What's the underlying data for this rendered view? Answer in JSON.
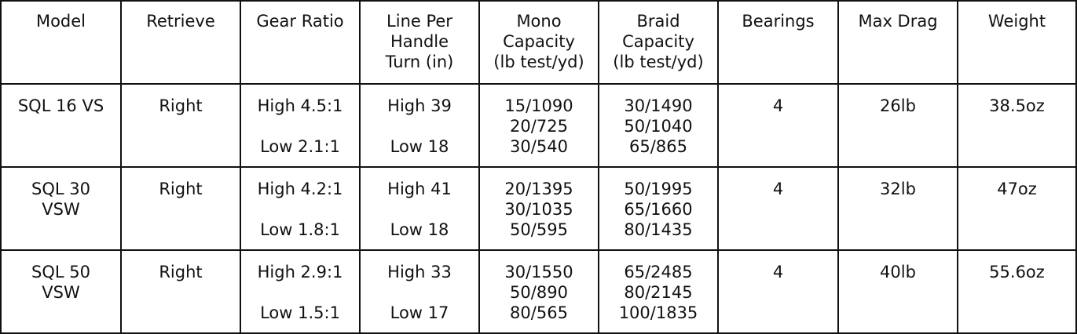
{
  "table": {
    "headers": [
      [
        "Model"
      ],
      [
        "Retrieve"
      ],
      [
        "Gear Ratio"
      ],
      [
        "Line Per",
        "Handle",
        "Turn (in)"
      ],
      [
        "Mono",
        "Capacity",
        "(lb test/yd)"
      ],
      [
        "Braid",
        "Capacity",
        "(lb test/yd)"
      ],
      [
        "Bearings"
      ],
      [
        "Max Drag"
      ],
      [
        "Weight"
      ]
    ],
    "rows": [
      {
        "model": [
          "SQL 16 VS"
        ],
        "retrieve": "Right",
        "gear_high": "High 4.5:1",
        "gear_low": "Low 2.1:1",
        "line_high": "High 39",
        "line_low": "Low 18",
        "mono": [
          "15/1090",
          "20/725",
          "30/540"
        ],
        "braid": [
          "30/1490",
          "50/1040",
          "65/865"
        ],
        "bearings": "4",
        "max_drag": "26lb",
        "weight": "38.5oz"
      },
      {
        "model": [
          "SQL 30",
          "VSW"
        ],
        "retrieve": "Right",
        "gear_high": "High 4.2:1",
        "gear_low": "Low 1.8:1",
        "line_high": "High 41",
        "line_low": "Low 18",
        "mono": [
          "20/1395",
          "30/1035",
          "50/595"
        ],
        "braid": [
          "50/1995",
          "65/1660",
          "80/1435"
        ],
        "bearings": "4",
        "max_drag": "32lb",
        "weight": "47oz"
      },
      {
        "model": [
          "SQL 50",
          "VSW"
        ],
        "retrieve": "Right",
        "gear_high": "High 2.9:1",
        "gear_low": "Low 1.5:1",
        "line_high": "High 33",
        "line_low": "Low 17",
        "mono": [
          "30/1550",
          "50/890",
          "80/565"
        ],
        "braid": [
          "65/2485",
          "80/2145",
          "100/1835"
        ],
        "bearings": "4",
        "max_drag": "40lb",
        "weight": "55.6oz"
      }
    ]
  }
}
